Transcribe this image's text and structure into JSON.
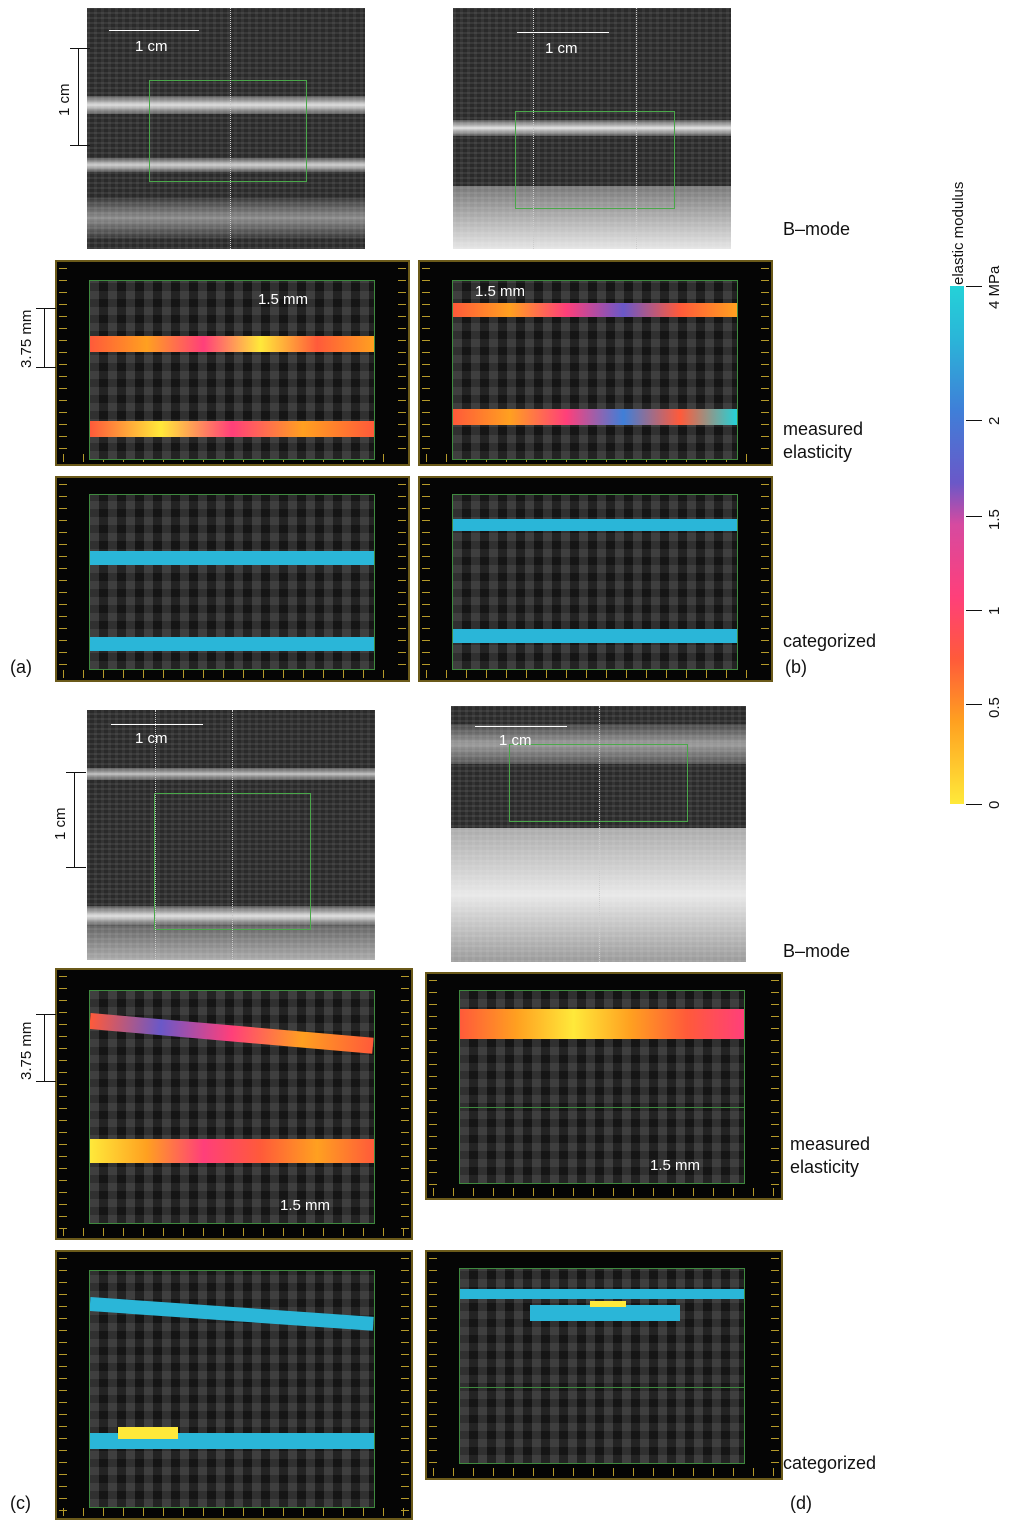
{
  "scale_labels": {
    "one_cm": "1 cm",
    "three_75_mm": "3.75 mm",
    "one_5_mm": "1.5 mm"
  },
  "row_labels": {
    "bmode": "B–mode",
    "measured": "measured\nelasticity",
    "measured_line1": "measured",
    "measured_line2": "elasticity",
    "categorized": "categorized"
  },
  "panel_letters": [
    "(a)",
    "(b)",
    "(c)",
    "(d)"
  ],
  "colorbar": {
    "title": "elastic modulus",
    "unit_label": "4 MPa",
    "ticks": [
      "4 MPa",
      "2",
      "1.5",
      "1",
      "0.5",
      "0"
    ],
    "colors": [
      "#ffe93a",
      "#ffa020",
      "#ff5a3a",
      "#ff3f7a",
      "#d64aa0",
      "#6a58c8",
      "#3f7fd8",
      "#2ab6d8",
      "#24d2d8"
    ]
  }
}
